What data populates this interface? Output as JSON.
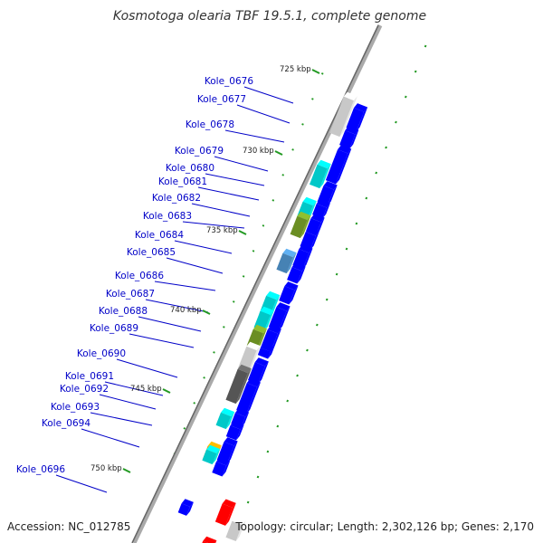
{
  "title": "Kosmotoga olearia TBF 19.5.1, complete genome",
  "footer": {
    "accession": "Accession: NC_012785",
    "stats": "Topology: circular; Length: 2,302,126 bp; Genes: 2,170"
  },
  "colors": {
    "label_text": "#0000c8",
    "leader_line": "#0000c8",
    "forward_gene": "#0000ff",
    "backbone": "#888888",
    "tick": "#229922",
    "cyan": "#00c8c8",
    "olive": "#6b8e23",
    "grey_light": "#c8c8c8",
    "grey_dark": "#555555",
    "red": "#ff0000",
    "orange": "#ff8c00",
    "steel": "#4682b4"
  },
  "scale_labels": [
    "725 kbp",
    "730 kbp",
    "735 kbp",
    "740 kbp",
    "745 kbp",
    "750 kbp"
  ],
  "gene_labels": [
    "Kole_0676",
    "Kole_0677",
    "Kole_0678",
    "Kole_0679",
    "Kole_0680",
    "Kole_0681",
    "Kole_0682",
    "Kole_0683",
    "Kole_0684",
    "Kole_0685",
    "Kole_0686",
    "Kole_0687",
    "Kole_0688",
    "Kole_0689",
    "Kole_0690",
    "Kole_0691",
    "Kole_0692",
    "Kole_0693",
    "Kole_0694",
    "Kole_0696"
  ]
}
